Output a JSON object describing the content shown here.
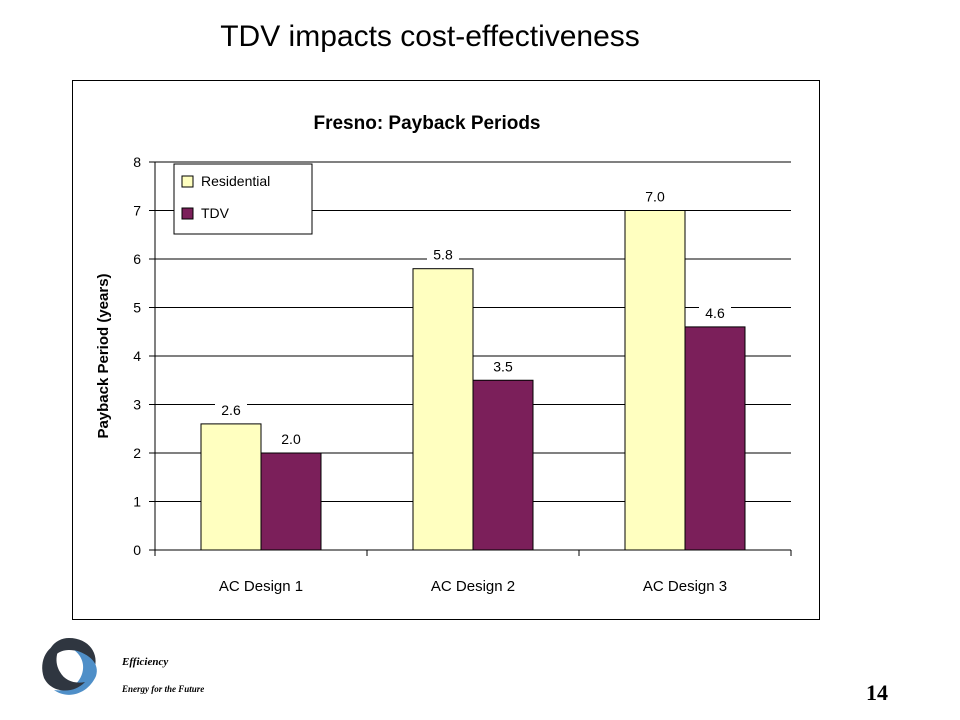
{
  "slide": {
    "title": "TDV impacts cost-effectiveness",
    "footer_line1": "Efficiency",
    "footer_line2": "Energy for the Future",
    "page_number": "14"
  },
  "colors": {
    "residential": "#ffffc0",
    "tdv": "#7b1f5a",
    "logo_dark": "#2f3640",
    "logo_blue": "#4f8fc8"
  },
  "chart_data": {
    "type": "bar",
    "title": "Fresno: Payback Periods",
    "xlabel": "",
    "ylabel": "Payback Period (years)",
    "categories": [
      "AC Design 1",
      "AC Design 2",
      "AC Design 3"
    ],
    "ylim": [
      0,
      8
    ],
    "yticks": [
      0,
      1,
      2,
      3,
      4,
      5,
      6,
      7,
      8
    ],
    "grid": true,
    "legend_position": "top-left",
    "series": [
      {
        "name": "Residential",
        "values": [
          2.6,
          5.8,
          7.0
        ],
        "labels": [
          "2.6",
          "5.8",
          "7.0"
        ]
      },
      {
        "name": "TDV",
        "values": [
          2.0,
          3.5,
          4.6
        ],
        "labels": [
          "2.0",
          "3.5",
          "4.6"
        ]
      }
    ]
  }
}
